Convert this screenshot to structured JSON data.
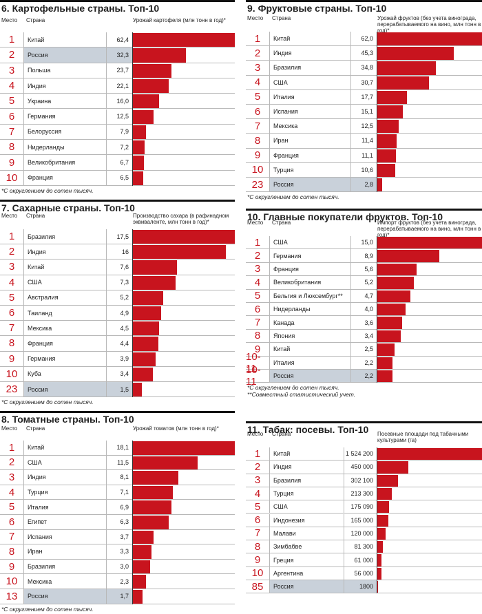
{
  "bar_color": "#c8141e",
  "highlight_color": "#c9d1da",
  "columns": [
    [
      {
        "number": "6.",
        "title": "Картофельные страны. Топ-10",
        "headers": [
          "Место",
          "Страна",
          "Урожай картофеля (млн тонн в год)*"
        ],
        "ranks": [
          "1",
          "2",
          "3",
          "4",
          "5",
          "6",
          "7",
          "8",
          "9",
          "10"
        ],
        "countries": [
          "Китай",
          "Россия",
          "Польша",
          "Индия",
          "Украина",
          "Германия",
          "Белоруссия",
          "Нидерланды",
          "Великобритания",
          "Франция"
        ],
        "values": [
          62.4,
          32.3,
          23.7,
          22.1,
          16.0,
          12.5,
          7.9,
          7.2,
          6.7,
          6.5
        ],
        "value_labels": [
          "62,4",
          "32,3",
          "23,7",
          "22,1",
          "16,0",
          "12,5",
          "7,9",
          "7,2",
          "6,7",
          "6,5"
        ],
        "highlight_rows": [
          1
        ],
        "footnotes": [
          "*С округлением до сотен тысяч."
        ]
      },
      {
        "number": "7.",
        "title": "Сахарные страны. Топ-10",
        "headers": [
          "Место",
          "Страна",
          "Производство сахара (в рафинадном эквиваленте, млн тонн в год)*"
        ],
        "ranks": [
          "1",
          "2",
          "3",
          "4",
          "5",
          "6",
          "7",
          "8",
          "9",
          "10",
          "23"
        ],
        "countries": [
          "Бразилия",
          "Индия",
          "Китай",
          "США",
          "Австралия",
          "Таиланд",
          "Мексика",
          "Франция",
          "Германия",
          "Куба",
          "Россия"
        ],
        "values": [
          17.5,
          16,
          7.6,
          7.3,
          5.2,
          4.9,
          4.5,
          4.4,
          3.9,
          3.4,
          1.5
        ],
        "value_labels": [
          "17,5",
          "16",
          "7,6",
          "7,3",
          "5,2",
          "4,9",
          "4,5",
          "4,4",
          "3,9",
          "3,4",
          "1,5"
        ],
        "highlight_rows": [
          10
        ],
        "footnotes": [
          "*С округлением до сотен тысяч."
        ]
      },
      {
        "number": "8.",
        "title": "Томатные страны. Топ-10",
        "headers": [
          "Место",
          "Страна",
          "Урожай томатов (млн тонн в год)*"
        ],
        "ranks": [
          "1",
          "2",
          "3",
          "4",
          "5",
          "6",
          "7",
          "8",
          "9",
          "10",
          "13"
        ],
        "countries": [
          "Китай",
          "США",
          "Индия",
          "Турция",
          "Италия",
          "Египет",
          "Испания",
          "Иран",
          "Бразилия",
          "Мексика",
          "Россия"
        ],
        "values": [
          18.1,
          11.5,
          8.1,
          7.1,
          6.9,
          6.3,
          3.7,
          3.3,
          3.0,
          2.3,
          1.7
        ],
        "value_labels": [
          "18,1",
          "11,5",
          "8,1",
          "7,1",
          "6,9",
          "6,3",
          "3,7",
          "3,3",
          "3,0",
          "2,3",
          "1,7"
        ],
        "highlight_rows": [
          10
        ],
        "footnotes": [
          "*С округлением до сотен тысяч."
        ]
      }
    ],
    [
      {
        "number": "9.",
        "title": "Фруктовые страны. Топ-10",
        "headers": [
          "Место",
          "Страна",
          "Урожай фруктов (без учета винограда, перерабатываемого на вино, млн тонн в год)*"
        ],
        "ranks": [
          "1",
          "2",
          "3",
          "4",
          "5",
          "6",
          "7",
          "8",
          "9",
          "10",
          "23"
        ],
        "countries": [
          "Китай",
          "Индия",
          "Бразилия",
          "США",
          "Италия",
          "Испания",
          "Мексика",
          "Иран",
          "Франция",
          "Турция",
          "Россия"
        ],
        "values": [
          62.0,
          45.3,
          34.8,
          30.7,
          17.7,
          15.1,
          12.5,
          11.4,
          11.1,
          10.6,
          2.8
        ],
        "value_labels": [
          "62,0",
          "45,3",
          "34,8",
          "30,7",
          "17,7",
          "15,1",
          "12,5",
          "11,4",
          "11,1",
          "10,6",
          "2,8"
        ],
        "highlight_rows": [
          10
        ],
        "footnotes": [
          "*С округлением до сотен тысяч."
        ]
      },
      {
        "number": "10.",
        "title": "Главные покупатели фруктов. Топ-10",
        "headers": [
          "Место",
          "Страна",
          "Импорт фруктов (без учета винограда, перерабатываемого на вино, млн тонн в год)*"
        ],
        "ranks": [
          "1",
          "2",
          "3",
          "4",
          "5",
          "6",
          "7",
          "8",
          "9",
          "10-11",
          "10-11"
        ],
        "countries": [
          "США",
          "Германия",
          "Франция",
          "Великобритания",
          "Бельгия и Люксембург**",
          "Нидерланды",
          "Канада",
          "Япония",
          "Китай",
          "Италия",
          "Россия"
        ],
        "values": [
          15.0,
          8.9,
          5.6,
          5.2,
          4.7,
          4.0,
          3.6,
          3.4,
          2.5,
          2.2,
          2.2
        ],
        "value_labels": [
          "15,0",
          "8,9",
          "5,6",
          "5,2",
          "4,7",
          "4,0",
          "3,6",
          "3,4",
          "2,5",
          "2,2",
          "2,2"
        ],
        "highlight_rows": [
          10
        ],
        "footnotes": [
          "*С округлением до сотен тысяч.",
          "**Совместный статистический учет."
        ]
      },
      {
        "number": "11.",
        "title": "Табак: посевы. Топ-10",
        "headers": [
          "Место",
          "Страна",
          "Посевные площади под табачными культурами (га)"
        ],
        "ranks": [
          "1",
          "2",
          "3",
          "4",
          "5",
          "6",
          "7",
          "8",
          "9",
          "10",
          "85"
        ],
        "countries": [
          "Китай",
          "Индия",
          "Бразилия",
          "Турция",
          "США",
          "Индонезия",
          "Малави",
          "Зимбабве",
          "Греция",
          "Аргентина",
          "Россия"
        ],
        "values": [
          1524200,
          450000,
          302100,
          213300,
          175090,
          165000,
          120000,
          81300,
          61000,
          56000,
          1800
        ],
        "value_labels": [
          "1 524 200",
          "450 000",
          "302 100",
          "213 300",
          "175 090",
          "165 000",
          "120 000",
          "81 300",
          "61 000",
          "56 000",
          "1800"
        ],
        "highlight_rows": [
          10
        ],
        "footnotes": []
      }
    ]
  ]
}
